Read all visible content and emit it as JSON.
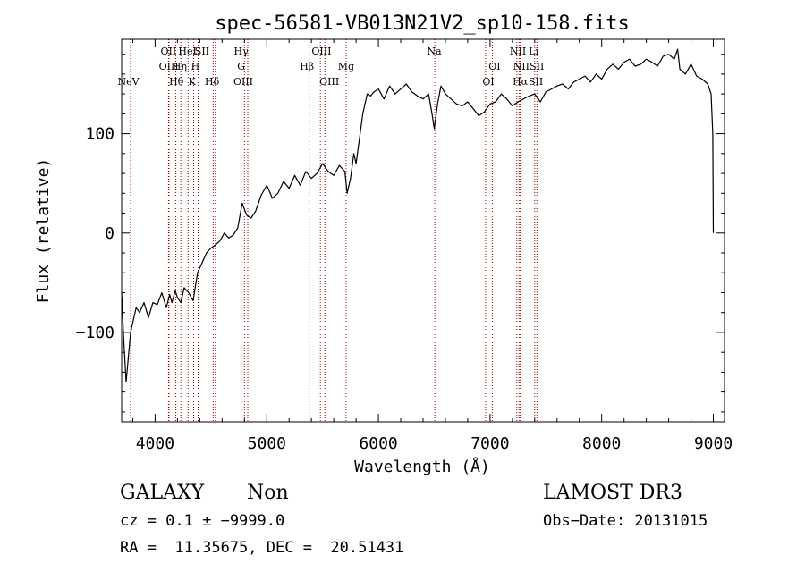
{
  "chart_data": {
    "type": "line",
    "title": "spec-56581-VB013N21V2_sp10-158.fits",
    "xlabel": "Wavelength (Å)",
    "ylabel": "Flux (relative)",
    "xlim": [
      3700,
      9100
    ],
    "ylim": [
      -190,
      195
    ],
    "xticks": [
      {
        "value": 4000,
        "label": "4000"
      },
      {
        "value": 5000,
        "label": "5000"
      },
      {
        "value": 6000,
        "label": "6000"
      },
      {
        "value": 7000,
        "label": "7000"
      },
      {
        "value": 8000,
        "label": "8000"
      },
      {
        "value": 9000,
        "label": "9000"
      }
    ],
    "yticks": [
      {
        "value": -100,
        "label": "−100"
      },
      {
        "value": 0,
        "label": "0"
      },
      {
        "value": 100,
        "label": "100"
      }
    ],
    "series": [
      {
        "name": "spectrum",
        "x": [
          3700,
          3720,
          3740,
          3760,
          3780,
          3800,
          3830,
          3860,
          3900,
          3940,
          3980,
          4020,
          4060,
          4100,
          4130,
          4150,
          4180,
          4200,
          4230,
          4260,
          4300,
          4340,
          4380,
          4420,
          4460,
          4500,
          4540,
          4580,
          4620,
          4660,
          4700,
          4740,
          4780,
          4820,
          4860,
          4900,
          4950,
          5000,
          5050,
          5100,
          5150,
          5200,
          5250,
          5300,
          5350,
          5400,
          5450,
          5500,
          5550,
          5600,
          5650,
          5700,
          5720,
          5750,
          5780,
          5800,
          5830,
          5860,
          5880,
          5900,
          5930,
          5960,
          6000,
          6050,
          6100,
          6150,
          6200,
          6250,
          6300,
          6350,
          6400,
          6450,
          6480,
          6500,
          6530,
          6560,
          6600,
          6650,
          6700,
          6750,
          6800,
          6850,
          6900,
          6950,
          7000,
          7050,
          7100,
          7150,
          7200,
          7250,
          7300,
          7350,
          7400,
          7450,
          7500,
          7550,
          7600,
          7650,
          7700,
          7750,
          7800,
          7850,
          7900,
          7950,
          8000,
          8050,
          8100,
          8150,
          8200,
          8250,
          8300,
          8350,
          8400,
          8450,
          8500,
          8550,
          8600,
          8650,
          8680,
          8700,
          8750,
          8800,
          8850,
          8900,
          8950,
          8980,
          8995,
          9000
        ],
        "values": [
          -60,
          -110,
          -150,
          -125,
          -100,
          -90,
          -75,
          -80,
          -70,
          -85,
          -70,
          -72,
          -60,
          -75,
          -62,
          -70,
          -58,
          -65,
          -70,
          -55,
          -60,
          -68,
          -40,
          -30,
          -20,
          -15,
          -12,
          -8,
          0,
          -5,
          -2,
          5,
          30,
          18,
          15,
          22,
          38,
          48,
          35,
          40,
          52,
          45,
          58,
          48,
          62,
          55,
          60,
          70,
          62,
          58,
          68,
          62,
          40,
          55,
          80,
          70,
          95,
          120,
          130,
          140,
          138,
          142,
          145,
          135,
          148,
          140,
          145,
          150,
          142,
          138,
          135,
          140,
          120,
          105,
          130,
          148,
          140,
          135,
          130,
          128,
          132,
          125,
          118,
          122,
          130,
          132,
          140,
          135,
          128,
          132,
          135,
          138,
          140,
          132,
          142,
          145,
          148,
          150,
          145,
          152,
          155,
          158,
          152,
          160,
          155,
          165,
          170,
          165,
          172,
          175,
          168,
          170,
          175,
          172,
          168,
          178,
          180,
          175,
          185,
          165,
          160,
          170,
          158,
          155,
          150,
          140,
          100,
          0
        ]
      }
    ],
    "line_annotations": [
      {
        "label": "NeV",
        "wavelength": 3760,
        "row": 3
      },
      {
        "label": "OII",
        "wavelength": 4120,
        "row": 1
      },
      {
        "label": "OIII",
        "wavelength": 4122,
        "row": 2
      },
      {
        "label": "Hθ",
        "wavelength": 4190,
        "row": 3
      },
      {
        "label": "Hη",
        "wavelength": 4220,
        "row": 2
      },
      {
        "label": "HeI",
        "wavelength": 4290,
        "row": 1
      },
      {
        "label": "K",
        "wavelength": 4330,
        "row": 3
      },
      {
        "label": "H",
        "wavelength": 4360,
        "row": 2
      },
      {
        "label": "SII",
        "wavelength": 4420,
        "row": 1
      },
      {
        "label": "Hδ",
        "wavelength": 4510,
        "row": 3
      },
      {
        "label": "Hγ",
        "wavelength": 4770,
        "row": 1
      },
      {
        "label": "G",
        "wavelength": 4770,
        "row": 2
      },
      {
        "label": "OIII",
        "wavelength": 4790,
        "row": 3
      },
      {
        "label": "Hβ",
        "wavelength": 5360,
        "row": 2
      },
      {
        "label": "OIII",
        "wavelength": 5490,
        "row": 1
      },
      {
        "label": "OIII",
        "wavelength": 5560,
        "row": 3
      },
      {
        "label": "Mg",
        "wavelength": 5710,
        "row": 2
      },
      {
        "label": "Na",
        "wavelength": 6500,
        "row": 1
      },
      {
        "label": "OI",
        "wavelength": 7040,
        "row": 2
      },
      {
        "label": "OI",
        "wavelength": 6985,
        "row": 3
      },
      {
        "label": "NII",
        "wavelength": 7250,
        "row": 1
      },
      {
        "label": "NII",
        "wavelength": 7280,
        "row": 2
      },
      {
        "label": "Hα",
        "wavelength": 7270,
        "row": 3
      },
      {
        "label": "Li",
        "wavelength": 7390,
        "row": 1
      },
      {
        "label": "SII",
        "wavelength": 7420,
        "row": 2
      },
      {
        "label": "SII",
        "wavelength": 7410,
        "row": 3
      }
    ],
    "line_markers": [
      3780,
      4120,
      4125,
      4185,
      4230,
      4295,
      4345,
      4385,
      4520,
      4540,
      4770,
      4800,
      4830,
      5380,
      5480,
      5520,
      5710,
      6505,
      6960,
      7020,
      7240,
      7260,
      7270,
      7400,
      7420
    ],
    "marker_color": "#aa0000"
  },
  "info": {
    "object_class": "GALAXY",
    "subclass": "Non",
    "survey": "LAMOST DR3",
    "redshift": "cz = 0.1 ± −9999.0",
    "obs_date": "Obs−Date: 20131015",
    "coords": "RA =  11.35675, DEC =  20.51431"
  }
}
